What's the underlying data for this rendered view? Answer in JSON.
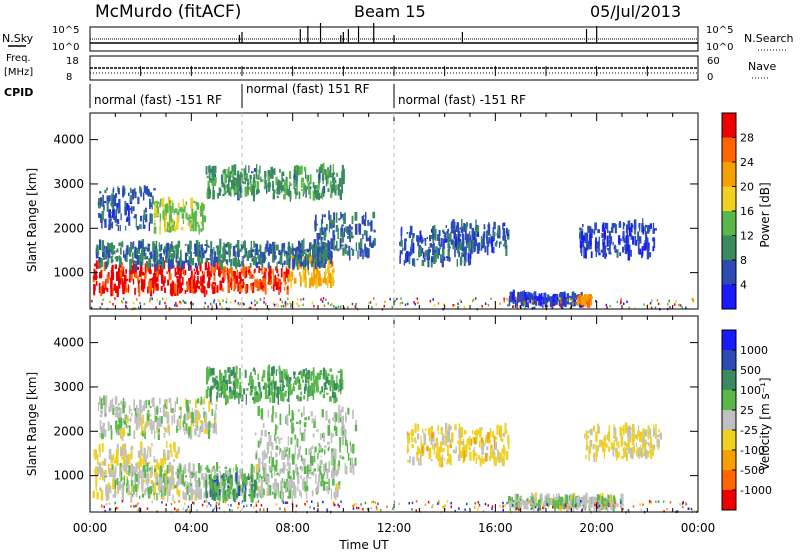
{
  "header": {
    "station": "McMurdo (fitACF)",
    "beam": "Beam 15",
    "date": "05/Jul/2013"
  },
  "top_panels": {
    "nsky_label": "N.Sky",
    "nsky_ticks": [
      "10^5",
      "10^0"
    ],
    "nsearch_label": "N.Search",
    "nsearch_ticks": [
      "10^5",
      "10^0"
    ],
    "freq_label_1": "Freq.",
    "freq_label_2": "[MHz]",
    "freq_ticks": [
      "18",
      "8"
    ],
    "nave_label": "Nave",
    "nave_ticks": [
      "60",
      "0"
    ],
    "cpid_label": "CPID",
    "cpid_segments": [
      {
        "text": "normal (fast) -151 RF",
        "start_h": 0.0,
        "end_h": 6.0
      },
      {
        "text": "normal (fast) 151 RF",
        "start_h": 6.0,
        "end_h": 12.0
      },
      {
        "text": "normal (fast) -151 RF",
        "start_h": 12.0,
        "end_h": 24.0
      }
    ]
  },
  "axes": {
    "xlabel": "Time UT",
    "ylabel": "Slant Range [km]",
    "xticks": [
      "00:00",
      "04:00",
      "08:00",
      "12:00",
      "16:00",
      "20:00",
      "00:00"
    ],
    "yticks": [
      "1000",
      "2000",
      "3000",
      "4000"
    ]
  },
  "power_colorbar": {
    "label": "Power [dB]",
    "ticks": [
      "4",
      "8",
      "12",
      "16",
      "20",
      "24",
      "28"
    ]
  },
  "velocity_colorbar": {
    "label": "Velocity [m s⁻¹]",
    "ticks": [
      "1000",
      "500",
      "100",
      "25",
      "-25",
      "-100",
      "-500",
      "-1000"
    ]
  },
  "chart_data": [
    {
      "type": "heatmap",
      "title": "Power",
      "xlabel": "Time UT",
      "ylabel": "Slant Range [km]",
      "xlim": [
        0,
        24
      ],
      "ylim": [
        180,
        4600
      ],
      "colorbar_label": "Power [dB]",
      "colorbar_range": [
        0,
        30
      ],
      "colors": [
        "#1a1aff",
        "#2c4cb4",
        "#3a8a60",
        "#5ab84a",
        "#f0d020",
        "#f5a000",
        "#ff6600",
        "#ee0000"
      ],
      "blobs": [
        {
          "t0": 0.1,
          "t1": 5.2,
          "r0": 550,
          "r1": 1200,
          "value": 28
        },
        {
          "t0": 5.2,
          "t1": 7.8,
          "r0": 600,
          "r1": 1100,
          "value": 26
        },
        {
          "t0": 7.8,
          "t1": 9.6,
          "r0": 750,
          "r1": 1350,
          "value": 20
        },
        {
          "t0": 0.2,
          "t1": 9.5,
          "r0": 1150,
          "r1": 1650,
          "value": 8
        },
        {
          "t0": 0.3,
          "t1": 2.5,
          "r0": 2000,
          "r1": 2900,
          "value": 6
        },
        {
          "t0": 2.5,
          "t1": 4.5,
          "r0": 1950,
          "r1": 2600,
          "value": 14
        },
        {
          "t0": 4.5,
          "t1": 10.0,
          "r0": 2700,
          "r1": 3350,
          "value": 10
        },
        {
          "t0": 8.8,
          "t1": 11.2,
          "r0": 1400,
          "r1": 2300,
          "value": 7
        },
        {
          "t0": 12.2,
          "t1": 15.0,
          "r0": 1200,
          "r1": 2000,
          "value": 6
        },
        {
          "t0": 14.0,
          "t1": 16.5,
          "r0": 1500,
          "r1": 2100,
          "value": 6
        },
        {
          "t0": 19.3,
          "t1": 22.3,
          "r0": 1400,
          "r1": 2100,
          "value": 5
        },
        {
          "t0": 16.5,
          "t1": 19.5,
          "r0": 300,
          "r1": 500,
          "value": 5
        },
        {
          "t0": 19.2,
          "t1": 19.8,
          "r0": 300,
          "r1": 450,
          "value": 22
        }
      ]
    },
    {
      "type": "heatmap",
      "title": "Velocity",
      "xlabel": "Time UT",
      "ylabel": "Slant Range [km]",
      "xlim": [
        0,
        24
      ],
      "ylim": [
        180,
        4600
      ],
      "colorbar_label": "Velocity [m s⁻¹]",
      "colorbar_range": [
        -1000,
        1000
      ],
      "colors": [
        "#ee0000",
        "#ff6600",
        "#f5a000",
        "#f0d020",
        "#c0c0c0",
        "#5ab84a",
        "#3a8a60",
        "#2c4cb4",
        "#1a1aff"
      ],
      "blobs": [
        {
          "t0": 0.1,
          "t1": 3.5,
          "r0": 550,
          "r1": 1700,
          "value": -150
        },
        {
          "t0": 0.5,
          "t1": 9.8,
          "r0": 500,
          "r1": 1200,
          "value": 60
        },
        {
          "t0": 4.5,
          "t1": 6.5,
          "r0": 500,
          "r1": 1000,
          "value": 400
        },
        {
          "t0": 6.5,
          "t1": 10.5,
          "r0": 1100,
          "r1": 2500,
          "value": 80
        },
        {
          "t0": 0.3,
          "t1": 5.0,
          "r0": 1900,
          "r1": 2700,
          "value": 20
        },
        {
          "t0": 4.5,
          "t1": 10.0,
          "r0": 2700,
          "r1": 3400,
          "value": 300
        },
        {
          "t0": 12.5,
          "t1": 16.5,
          "r0": 1300,
          "r1": 2100,
          "value": -200
        },
        {
          "t0": 19.5,
          "t1": 22.5,
          "r0": 1400,
          "r1": 2100,
          "value": -150
        },
        {
          "t0": 16.5,
          "t1": 21.0,
          "r0": 300,
          "r1": 500,
          "value": 50
        }
      ]
    }
  ]
}
